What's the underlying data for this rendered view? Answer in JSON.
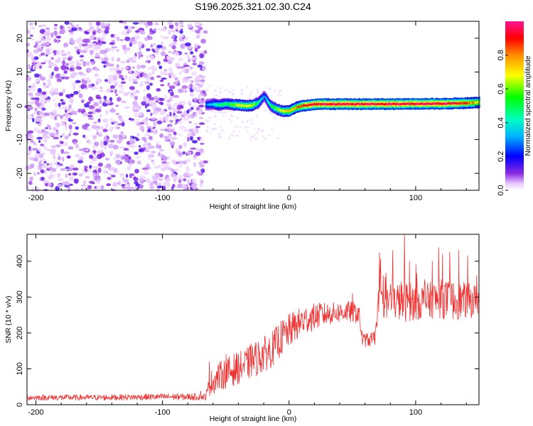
{
  "title": "S196.2025.321.02.30.C24",
  "chart_data": [
    {
      "type": "heatmap",
      "panel": "spectrogram",
      "xlabel": "Height of straight line (km)",
      "ylabel": "Frequency (Hz)",
      "xlim": [
        -207,
        150
      ],
      "ylim": [
        -25,
        25
      ],
      "xticks": [
        -200,
        -100,
        0,
        100
      ],
      "yticks": [
        -20,
        -10,
        0,
        10,
        20
      ],
      "colorbar": {
        "label": "Normalized spectral amplitude",
        "range": [
          0,
          1
        ],
        "ticks": [
          0,
          0.2,
          0.4,
          0.6,
          0.8
        ]
      },
      "noise_region_x": [
        -207,
        -66
      ],
      "ridge": {
        "x": [
          -66,
          -60,
          -55,
          -50,
          -45,
          -40,
          -35,
          -30,
          -25,
          -22,
          -20,
          -18,
          -15,
          -10,
          -5,
          0,
          5,
          10,
          15,
          20,
          40,
          60,
          80,
          100,
          120,
          140,
          150
        ],
        "frequency": [
          0.3,
          0.5,
          0.2,
          0.6,
          0.3,
          0.2,
          0.0,
          0.1,
          0.8,
          2.0,
          3.0,
          1.8,
          0.0,
          -1.0,
          -1.6,
          -1.5,
          -0.5,
          0.0,
          0.2,
          0.5,
          0.5,
          0.5,
          0.5,
          0.6,
          0.6,
          0.8,
          1.0
        ],
        "amplitude": [
          0.3,
          0.4,
          0.5,
          0.5,
          0.6,
          0.7,
          0.7,
          0.7,
          0.5,
          0.4,
          0.3,
          0.4,
          0.5,
          0.6,
          0.7,
          0.8,
          0.8,
          0.9,
          0.95,
          1.0,
          1.0,
          1.0,
          1.0,
          1.0,
          1.0,
          0.9,
          0.7
        ]
      }
    },
    {
      "type": "line",
      "panel": "snr",
      "xlabel": "Height of straight line (km)",
      "ylabel": "SNR (10 * v/v)",
      "xlim": [
        -207,
        150
      ],
      "ylim": [
        0,
        475
      ],
      "xticks": [
        -200,
        -100,
        0,
        100
      ],
      "yticks": [
        0,
        100,
        200,
        300,
        400
      ],
      "color": "#ee3333",
      "series": [
        {
          "name": "SNR",
          "x": [
            -207,
            -150,
            -100,
            -66,
            -62,
            -55,
            -45,
            -35,
            -25,
            -15,
            -5,
            5,
            15,
            25,
            35,
            45,
            55,
            58,
            62,
            68,
            70,
            80,
            90,
            100,
            110,
            120,
            130,
            140,
            150
          ],
          "mean": [
            20,
            20,
            22,
            22,
            60,
            80,
            95,
            110,
            130,
            150,
            190,
            220,
            240,
            250,
            255,
            260,
            255,
            180,
            180,
            185,
            280,
            285,
            290,
            285,
            290,
            295,
            290,
            290,
            290
          ],
          "spread": [
            8,
            8,
            9,
            10,
            35,
            40,
            45,
            45,
            50,
            50,
            50,
            45,
            40,
            35,
            30,
            30,
            30,
            20,
            20,
            20,
            40,
            45,
            60,
            50,
            50,
            55,
            55,
            50,
            45
          ],
          "spikes": [
            [
              -70,
              38
            ],
            [
              -63,
              120
            ],
            [
              -50,
              140
            ],
            [
              -30,
              170
            ],
            [
              -20,
              165
            ],
            [
              -12,
              195
            ],
            [
              10,
              255
            ],
            [
              25,
              280
            ],
            [
              50,
              310
            ],
            [
              72,
              370
            ],
            [
              80,
              335
            ],
            [
              91,
              475
            ],
            [
              95,
              400
            ],
            [
              100,
              390
            ],
            [
              113,
              400
            ],
            [
              121,
              420
            ],
            [
              134,
              430
            ],
            [
              141,
              415
            ],
            [
              148,
              360
            ]
          ]
        }
      ]
    }
  ]
}
